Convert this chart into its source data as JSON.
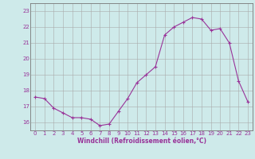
{
  "x": [
    0,
    1,
    2,
    3,
    4,
    5,
    6,
    7,
    8,
    9,
    10,
    11,
    12,
    13,
    14,
    15,
    16,
    17,
    18,
    19,
    20,
    21,
    22,
    23
  ],
  "y": [
    17.6,
    17.5,
    16.9,
    16.6,
    16.3,
    16.3,
    16.2,
    15.8,
    15.9,
    16.7,
    17.5,
    18.5,
    19.0,
    19.5,
    21.5,
    22.0,
    22.3,
    22.6,
    22.5,
    21.8,
    21.9,
    21.0,
    18.6,
    17.3
  ],
  "line_color": "#993399",
  "marker": "+",
  "marker_size": 3,
  "marker_linewidth": 0.8,
  "linewidth": 0.8,
  "background_color": "#ceeaea",
  "grid_color": "#aaaaaa",
  "xlabel": "Windchill (Refroidissement éolien,°C)",
  "ylabel_ticks": [
    16,
    17,
    18,
    19,
    20,
    21,
    22,
    23
  ],
  "xlim": [
    -0.5,
    23.5
  ],
  "ylim": [
    15.5,
    23.5
  ],
  "tick_color": "#993399",
  "xlabel_color": "#993399",
  "xlabel_fontsize": 5.5,
  "tick_fontsize": 5.0,
  "spine_color": "#777777"
}
